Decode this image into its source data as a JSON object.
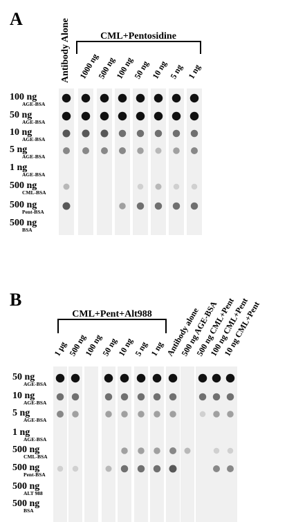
{
  "panel_a": {
    "label": "A",
    "antibody_label": "Antibody Alone",
    "group_label": "CML+Pentosidine",
    "columns": [
      "1000 ng",
      "500 ng",
      "100 ng",
      "50 ng",
      "10 ng",
      "5 ng",
      "1 ng"
    ],
    "rows": [
      [
        "100 ng",
        "AGE-BSA"
      ],
      [
        "50 ng",
        "AGE-BSA"
      ],
      [
        "10 ng",
        "AGE-BSA"
      ],
      [
        "5 ng",
        "AGE-BSA"
      ],
      [
        "1 ng",
        "AGE-BSA"
      ],
      [
        "500 ng",
        "CML-BSA"
      ],
      [
        "500 ng",
        "Pent-BSA"
      ],
      [
        "500 ng",
        "BSA"
      ]
    ]
  },
  "panel_b": {
    "label": "B",
    "group_label": "CML+Pent+Alt988",
    "columns": [
      "1 μg",
      "500 ng",
      "100 ng",
      "50 ng",
      "10 ng",
      "5 ng",
      "1 ng",
      "Antibody  alone",
      "500 ng AGE-BSA",
      "500 ng CML+Pent",
      "100 ng CML+Pent",
      "10 ng CML+Pent"
    ],
    "rows": [
      [
        "50 ng",
        "AGE-BSA"
      ],
      [
        "10 ng",
        "AGE-BSA"
      ],
      [
        "5 ng",
        "AGE-BSA"
      ],
      [
        "1 ng",
        "AGE-BSA"
      ],
      [
        "500 ng",
        "CML-BSA"
      ],
      [
        "500 ng",
        "Pent-BSA"
      ],
      [
        "500 ng",
        "ALT 988"
      ],
      [
        "500 ng",
        "BSA"
      ]
    ]
  }
}
